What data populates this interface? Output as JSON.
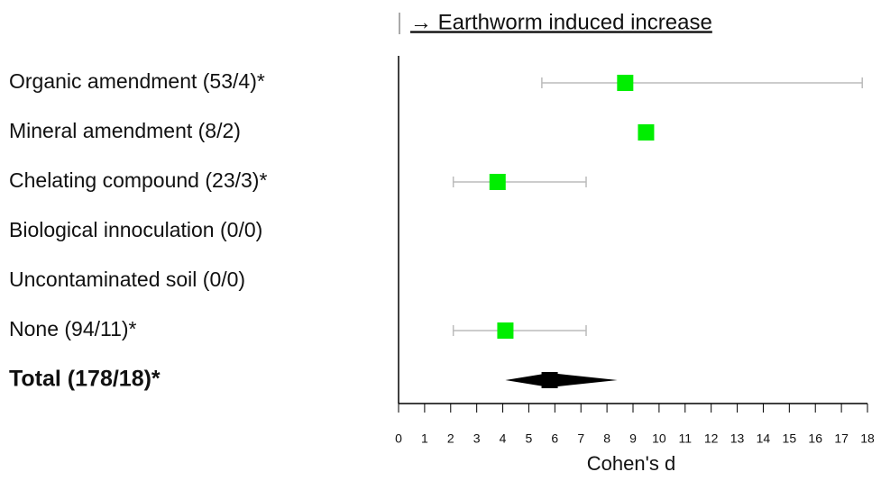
{
  "chart_data": {
    "type": "forest",
    "header": "→ Earthworm induced increase",
    "categories": [
      "Organic amendment (53/4)*",
      "Mineral amendment (8/2)",
      "Chelating compound (23/3)*",
      "Biological innoculation (0/0)",
      "Uncontaminated soil (0/0)",
      "None (94/11)*"
    ],
    "values": [
      8.7,
      9.5,
      3.8,
      null,
      null,
      4.1
    ],
    "lower": [
      5.5,
      null,
      2.1,
      null,
      null,
      2.1
    ],
    "upper": [
      17.8,
      null,
      7.2,
      null,
      null,
      7.2
    ],
    "color": "#00ee00",
    "summary": {
      "label": "Total (178/18)*",
      "value": 5.8,
      "lower": 4.1,
      "upper": 8.4,
      "color": "#000000"
    },
    "xlabel": "Cohen's d",
    "xlim": [
      0,
      18
    ],
    "xticks": [
      0,
      1,
      2,
      3,
      4,
      5,
      6,
      7,
      8,
      9,
      10,
      11,
      12,
      13,
      14,
      15,
      16,
      17,
      18
    ]
  }
}
